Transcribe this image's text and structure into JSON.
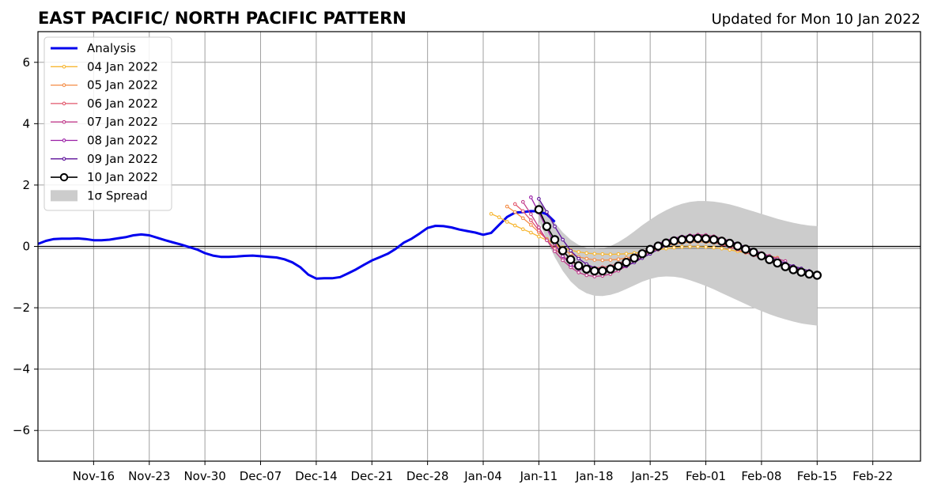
{
  "chart_data": {
    "type": "line",
    "title": "EAST PACIFIC/ NORTH PACIFIC PATTERN",
    "subtitle": "Updated for Mon 10 Jan 2022",
    "xlabel": "",
    "ylabel": "",
    "ylim": [
      -7,
      7
    ],
    "xlim": [
      "2021-11-09",
      "2022-02-28"
    ],
    "yticks": [
      -6,
      -4,
      -2,
      0,
      2,
      4,
      6
    ],
    "ytick_labels": [
      "−6",
      "−4",
      "−2",
      "0",
      "2",
      "4",
      "6"
    ],
    "xticks": [
      "2021-11-16",
      "2021-11-23",
      "2021-11-30",
      "2021-12-07",
      "2021-12-14",
      "2021-12-21",
      "2021-12-28",
      "2022-01-04",
      "2022-01-11",
      "2022-01-18",
      "2022-01-25",
      "2022-02-01",
      "2022-02-08",
      "2022-02-15",
      "2022-02-22"
    ],
    "xtick_labels": [
      "Nov-16",
      "Nov-23",
      "Nov-30",
      "Dec-07",
      "Dec-14",
      "Dec-21",
      "Dec-28",
      "Jan-04",
      "Jan-11",
      "Jan-18",
      "Jan-25",
      "Feb-01",
      "Feb-08",
      "Feb-15",
      "Feb-22"
    ],
    "grid": true,
    "zero_line": true,
    "legend_position": "upper-left",
    "analysis": {
      "name": "Analysis",
      "color": "#0000ee",
      "start": "2021-11-09",
      "values": [
        0.08,
        0.18,
        0.24,
        0.25,
        0.25,
        0.26,
        0.24,
        0.2,
        0.2,
        0.22,
        0.26,
        0.3,
        0.36,
        0.39,
        0.36,
        0.28,
        0.2,
        0.13,
        0.06,
        -0.02,
        -0.1,
        -0.22,
        -0.3,
        -0.34,
        -0.34,
        -0.33,
        -0.31,
        -0.3,
        -0.32,
        -0.34,
        -0.36,
        -0.42,
        -0.52,
        -0.68,
        -0.92,
        -1.05,
        -1.04,
        -1.04,
        -1.0,
        -0.88,
        -0.75,
        -0.6,
        -0.46,
        -0.35,
        -0.24,
        -0.08,
        0.12,
        0.25,
        0.42,
        0.6,
        0.67,
        0.66,
        0.62,
        0.55,
        0.5,
        0.45,
        0.38,
        0.44,
        0.7,
        0.96,
        1.1,
        1.12,
        1.15,
        1.14,
        1.05,
        0.8
      ]
    },
    "forecasts": [
      {
        "name": "04 Jan 2022",
        "color": "#f7b733",
        "start": "2022-01-05",
        "values": [
          1.06,
          0.95,
          0.8,
          0.68,
          0.56,
          0.45,
          0.32,
          0.2,
          0.08,
          -0.03,
          -0.12,
          -0.18,
          -0.22,
          -0.24,
          -0.25,
          -0.26,
          -0.25,
          -0.24,
          -0.22,
          -0.19,
          -0.15,
          -0.11,
          -0.07,
          -0.04,
          -0.02,
          -0.01,
          -0.01,
          -0.02,
          -0.04,
          -0.07,
          -0.11,
          -0.16,
          -0.21,
          -0.26,
          -0.3
        ]
      },
      {
        "name": "05 Jan 2022",
        "color": "#f48c45",
        "start": "2022-01-07",
        "values": [
          1.3,
          1.12,
          0.92,
          0.7,
          0.46,
          0.24,
          0.06,
          -0.1,
          -0.24,
          -0.34,
          -0.4,
          -0.44,
          -0.45,
          -0.44,
          -0.42,
          -0.38,
          -0.32,
          -0.25,
          -0.16,
          -0.07,
          0.02,
          0.08,
          0.12,
          0.14,
          0.15,
          0.14,
          0.12,
          0.08,
          0.03,
          -0.03,
          -0.1,
          -0.17,
          -0.24,
          -0.31,
          -0.37
        ]
      },
      {
        "name": "06 Jan 2022",
        "color": "#e2566b",
        "start": "2022-01-08",
        "values": [
          1.38,
          1.15,
          0.85,
          0.52,
          0.2,
          -0.08,
          -0.32,
          -0.5,
          -0.62,
          -0.68,
          -0.7,
          -0.68,
          -0.64,
          -0.56,
          -0.45,
          -0.32,
          -0.18,
          -0.05,
          0.07,
          0.16,
          0.22,
          0.25,
          0.26,
          0.24,
          0.2,
          0.14,
          0.06,
          -0.02,
          -0.11,
          -0.2,
          -0.29,
          -0.37,
          -0.44
        ]
      },
      {
        "name": "07 Jan 2022",
        "color": "#c13d8c",
        "start": "2022-01-09",
        "values": [
          1.45,
          1.05,
          0.62,
          0.2,
          -0.16,
          -0.45,
          -0.68,
          -0.85,
          -0.94,
          -0.98,
          -0.96,
          -0.9,
          -0.79,
          -0.65,
          -0.5,
          -0.34,
          -0.18,
          -0.03,
          0.1,
          0.22,
          0.3,
          0.36,
          0.38,
          0.37,
          0.33,
          0.26,
          0.18,
          0.08,
          -0.02,
          -0.12,
          -0.22,
          -0.31,
          -0.4,
          -0.48
        ]
      },
      {
        "name": "08 Jan 2022",
        "color": "#9b1fa6",
        "start": "2022-01-10",
        "values": [
          1.6,
          1.1,
          0.58,
          0.08,
          -0.32,
          -0.6,
          -0.74,
          -0.8,
          -0.82,
          -0.8,
          -0.74,
          -0.64,
          -0.5,
          -0.35,
          -0.2,
          -0.05,
          0.08,
          0.19,
          0.27,
          0.32,
          0.35,
          0.35,
          0.33,
          0.28,
          0.21,
          0.12,
          0.02,
          -0.09,
          -0.2,
          -0.31,
          -0.41,
          -0.51,
          -0.6,
          -0.68,
          -0.75
        ]
      },
      {
        "name": "09 Jan 2022",
        "color": "#5c0f9a",
        "start": "2022-01-11",
        "values": [
          1.55,
          1.12,
          0.65,
          0.22,
          -0.14,
          -0.4,
          -0.58,
          -0.7,
          -0.75,
          -0.76,
          -0.72,
          -0.64,
          -0.52,
          -0.38,
          -0.24,
          -0.1,
          0.03,
          0.14,
          0.22,
          0.28,
          0.31,
          0.31,
          0.29,
          0.24,
          0.17,
          0.08,
          -0.02,
          -0.13,
          -0.24,
          -0.35,
          -0.45,
          -0.55,
          -0.64,
          -0.72,
          -0.8
        ]
      },
      {
        "name": "10 Jan 2022",
        "color": "#000000",
        "start": "2022-01-11",
        "values": [
          1.2,
          0.65,
          0.22,
          -0.14,
          -0.43,
          -0.63,
          -0.74,
          -0.8,
          -0.8,
          -0.74,
          -0.64,
          -0.52,
          -0.38,
          -0.24,
          -0.1,
          0.01,
          0.11,
          0.18,
          0.22,
          0.25,
          0.26,
          0.25,
          0.22,
          0.17,
          0.1,
          0.01,
          -0.09,
          -0.19,
          -0.31,
          -0.43,
          -0.54,
          -0.66,
          -0.76,
          -0.84,
          -0.9,
          -0.94
        ]
      }
    ],
    "spread": {
      "name": "1σ Spread",
      "color": "#cccccc",
      "start": "2022-01-11",
      "upper": [
        1.55,
        1.15,
        0.78,
        0.46,
        0.22,
        0.05,
        -0.05,
        -0.09,
        -0.07,
        0.01,
        0.14,
        0.3,
        0.49,
        0.69,
        0.87,
        1.04,
        1.18,
        1.3,
        1.39,
        1.45,
        1.48,
        1.48,
        1.46,
        1.42,
        1.37,
        1.3,
        1.22,
        1.14,
        1.06,
        0.98,
        0.9,
        0.83,
        0.77,
        0.72,
        0.68,
        0.66
      ],
      "lower": [
        0.85,
        0.2,
        -0.35,
        -0.8,
        -1.14,
        -1.38,
        -1.53,
        -1.61,
        -1.62,
        -1.58,
        -1.5,
        -1.39,
        -1.27,
        -1.15,
        -1.06,
        -1.0,
        -0.98,
        -0.99,
        -1.03,
        -1.1,
        -1.19,
        -1.29,
        -1.4,
        -1.52,
        -1.64,
        -1.76,
        -1.88,
        -2.0,
        -2.11,
        -2.21,
        -2.3,
        -2.38,
        -2.45,
        -2.51,
        -2.55,
        -2.58
      ]
    }
  }
}
